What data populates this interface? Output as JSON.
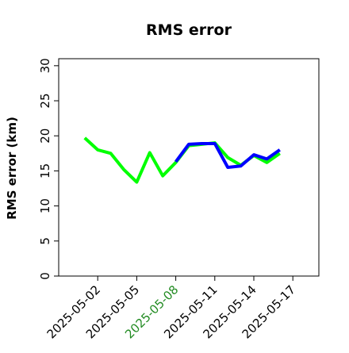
{
  "chart_data": {
    "type": "line",
    "title": "RMS error",
    "xlabel": "",
    "ylabel": "RMS error (km)",
    "ylim": [
      0,
      31
    ],
    "xlim": [
      "2025-04-29",
      "2025-05-19"
    ],
    "grid": false,
    "x_ticks": [
      "2025-05-02",
      "2025-05-05",
      "2025-05-08",
      "2025-05-11",
      "2025-05-14",
      "2025-05-17"
    ],
    "x_tick_colors": [
      "#000000",
      "#000000",
      "#228b22",
      "#000000",
      "#000000",
      "#000000"
    ],
    "y_ticks": [
      "0",
      "5",
      "10",
      "15",
      "20",
      "25",
      "30"
    ],
    "y_tick_values": [
      0,
      5,
      10,
      15,
      20,
      25,
      30
    ],
    "series": [
      {
        "color": "#00ff00",
        "x": [
          "2025-05-01",
          "2025-05-02",
          "2025-05-03",
          "2025-05-04",
          "2025-05-05",
          "2025-05-06",
          "2025-05-07",
          "2025-05-08",
          "2025-05-09",
          "2025-05-10",
          "2025-05-11",
          "2025-05-12",
          "2025-05-13",
          "2025-05-14",
          "2025-05-15",
          "2025-05-16"
        ],
        "values": [
          19.7,
          18.0,
          17.5,
          15.2,
          13.4,
          17.6,
          14.3,
          16.2,
          18.6,
          18.8,
          19.0,
          16.9,
          15.8,
          17.2,
          16.2,
          17.5
        ]
      },
      {
        "color": "#0000ff",
        "x": [
          "2025-05-08",
          "2025-05-09",
          "2025-05-10",
          "2025-05-11",
          "2025-05-12",
          "2025-05-13",
          "2025-05-14",
          "2025-05-15",
          "2025-05-16"
        ],
        "values": [
          16.3,
          18.8,
          18.9,
          18.9,
          15.5,
          15.7,
          17.3,
          16.7,
          18.0
        ]
      }
    ]
  }
}
